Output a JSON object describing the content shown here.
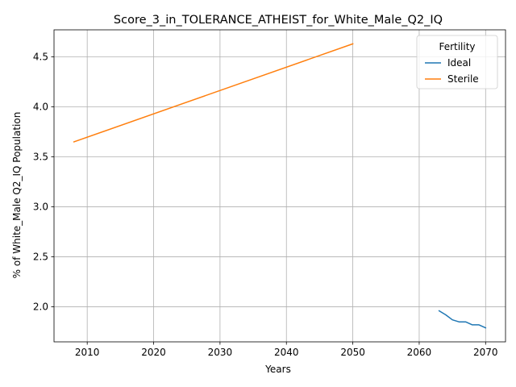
{
  "chart_data": {
    "type": "line",
    "title": "Score_3_in_TOLERANCE_ATHEIST_for_White_Male_Q2_IQ",
    "xlabel": "Years",
    "ylabel": "% of White_Male Q2_IQ Population",
    "xlim": [
      2005,
      2073
    ],
    "ylim": [
      1.65,
      4.77
    ],
    "xticks": [
      2010,
      2020,
      2030,
      2040,
      2050,
      2060,
      2070
    ],
    "xtick_labels": [
      "2010",
      "2020",
      "2030",
      "2040",
      "2050",
      "2060",
      "2070"
    ],
    "yticks": [
      2.0,
      2.5,
      3.0,
      3.5,
      4.0,
      4.5
    ],
    "ytick_labels": [
      "2.0",
      "2.5",
      "3.0",
      "3.5",
      "4.0",
      "4.5"
    ],
    "grid": true,
    "legend": {
      "title": "Fertility",
      "placement": "top-right"
    },
    "series": [
      {
        "name": "Ideal",
        "color": "#1f77b4",
        "x": [
          2063,
          2064,
          2065,
          2066,
          2067,
          2068,
          2069,
          2070
        ],
        "y": [
          1.96,
          1.92,
          1.87,
          1.85,
          1.85,
          1.82,
          1.82,
          1.79
        ]
      },
      {
        "name": "Sterile",
        "color": "#ff7f0e",
        "x": [
          2008,
          2050
        ],
        "y": [
          3.65,
          4.63
        ]
      }
    ]
  }
}
